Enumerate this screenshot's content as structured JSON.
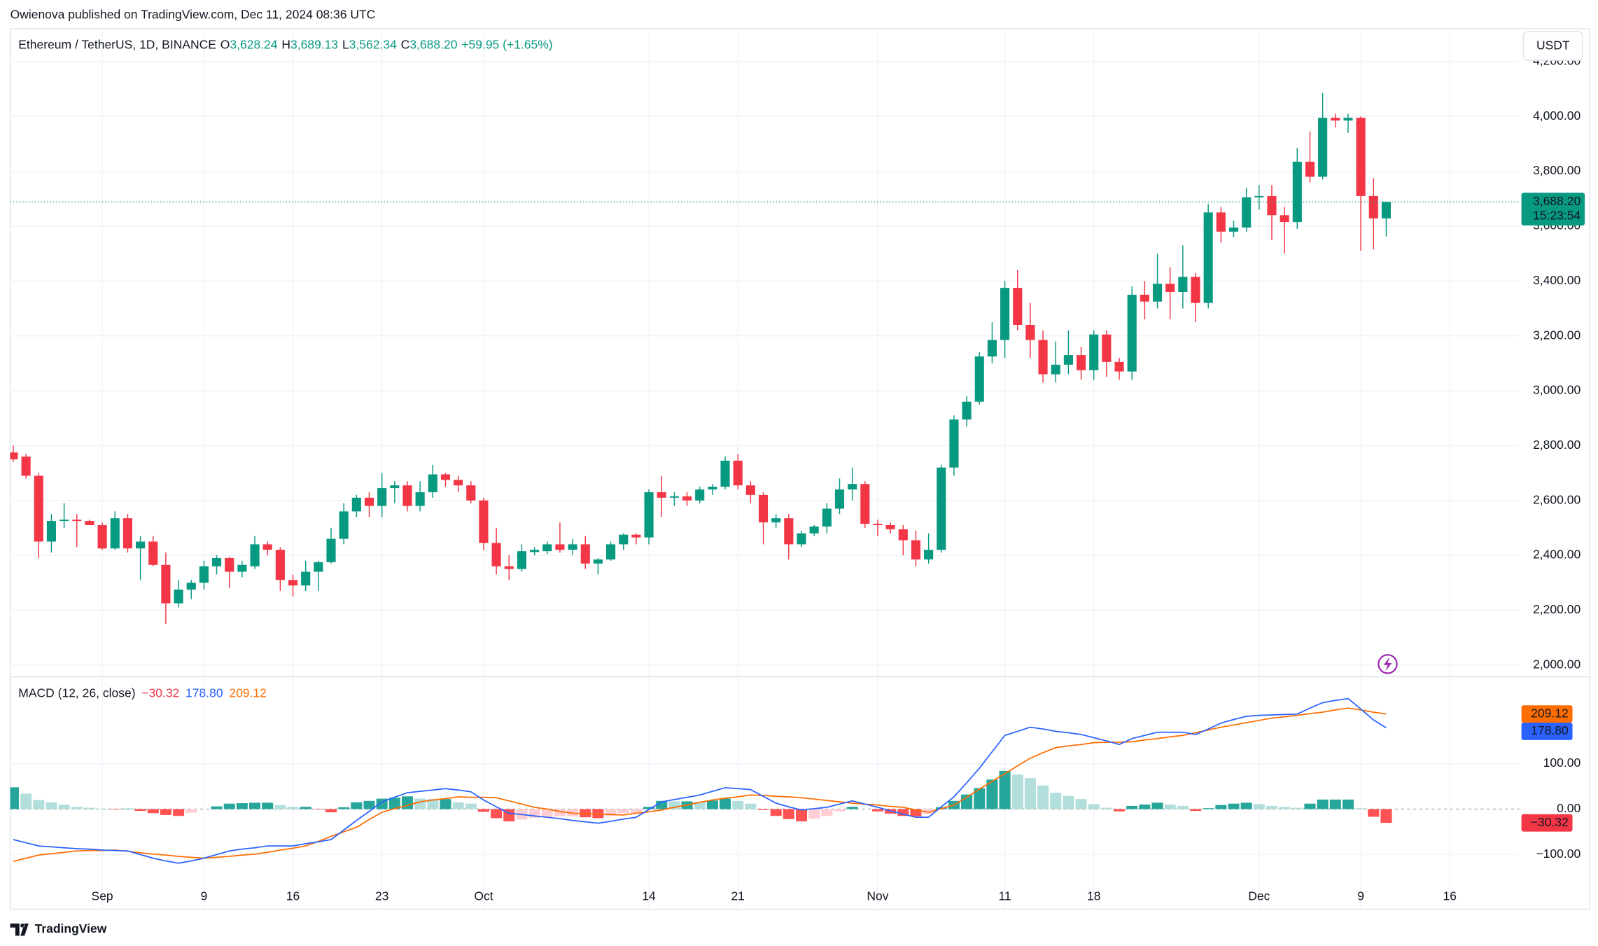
{
  "publisher": "Owienova published on TradingView.com, Dec 11, 2024 08:36 UTC",
  "brand": "TradingView",
  "chart_data": {
    "type": "candlestick",
    "header": {
      "symbol": "Ethereum / TetherUS, 1D, BINANCE",
      "fields": [
        {
          "key": "O",
          "value": "3,628.24"
        },
        {
          "key": "H",
          "value": "3,689.13"
        },
        {
          "key": "L",
          "value": "3,562.34"
        },
        {
          "key": "C",
          "value": "3,688.20"
        }
      ],
      "change": "+59.95 (+1.65%)"
    },
    "currency": "USDT",
    "countdown": "15:23:54",
    "up_color": "#089981",
    "down_color": "#f23645",
    "grid": true,
    "categories": [
      null,
      null,
      null,
      null,
      null,
      null,
      null,
      "Sep",
      null,
      null,
      null,
      null,
      null,
      null,
      null,
      "9",
      null,
      null,
      null,
      null,
      null,
      null,
      "16",
      null,
      null,
      null,
      null,
      null,
      null,
      "23",
      null,
      null,
      null,
      null,
      null,
      null,
      null,
      "Oct",
      null,
      null,
      null,
      null,
      null,
      null,
      null,
      null,
      null,
      null,
      null,
      null,
      "14",
      null,
      null,
      null,
      null,
      null,
      null,
      "21",
      null,
      null,
      null,
      null,
      null,
      null,
      null,
      null,
      null,
      null,
      "Nov",
      null,
      null,
      null,
      null,
      null,
      null,
      null,
      null,
      null,
      "11",
      null,
      null,
      null,
      null,
      null,
      null,
      "18",
      null,
      null,
      null,
      null,
      null,
      null,
      null,
      null,
      null,
      null,
      null,
      null,
      "Dec",
      null,
      null,
      null,
      null,
      null,
      null,
      null,
      "9",
      null,
      null,
      null,
      null,
      null,
      null,
      "16",
      null,
      null,
      null,
      null,
      null
    ],
    "open": [
      2775,
      2760,
      2690,
      2450,
      2525,
      2530,
      2525,
      2510,
      2425,
      2535,
      2425,
      2450,
      2365,
      2225,
      2275,
      2300,
      2360,
      2390,
      2340,
      2360,
      2440,
      2420,
      2310,
      2290,
      2340,
      2375,
      2460,
      2560,
      2610,
      2580,
      2645,
      2655,
      2580,
      2630,
      2695,
      2675,
      2655,
      2600,
      2445,
      2360,
      2350,
      2412,
      2415,
      2440,
      2420,
      2440,
      2370,
      2385,
      2440,
      2475,
      2465,
      2630,
      2610,
      2615,
      2600,
      2640,
      2650,
      2745,
      2655,
      2620,
      2520,
      2535,
      2440,
      2480,
      2505,
      2570,
      2640,
      2660,
      2515,
      2510,
      2495,
      2455,
      2385,
      2420,
      2720,
      2895,
      2960,
      3125,
      3185,
      3375,
      3240,
      3185,
      3060,
      3095,
      3130,
      3075,
      3205,
      3105,
      3070,
      3350,
      3325,
      3390,
      3360,
      3415,
      3320,
      3650,
      3580,
      3595,
      3705,
      3710,
      3640,
      3615,
      3835,
      3780,
      3995,
      3985,
      3995,
      3710,
      3628.24,
      null,
      null,
      null,
      null,
      null,
      null,
      null,
      null,
      null,
      null
    ],
    "high": [
      2800,
      2770,
      2700,
      2550,
      2590,
      2550,
      2530,
      2520,
      2560,
      2550,
      2470,
      2470,
      2410,
      2310,
      2310,
      2380,
      2400,
      2395,
      2380,
      2470,
      2450,
      2430,
      2330,
      2380,
      2380,
      2500,
      2590,
      2620,
      2630,
      2700,
      2670,
      2670,
      2670,
      2730,
      2700,
      2690,
      2670,
      2610,
      2500,
      2400,
      2440,
      2430,
      2450,
      2520,
      2460,
      2470,
      2390,
      2450,
      2480,
      2480,
      2640,
      2690,
      2630,
      2630,
      2650,
      2660,
      2760,
      2770,
      2670,
      2630,
      2550,
      2550,
      2490,
      2510,
      2590,
      2680,
      2720,
      2670,
      2530,
      2520,
      2510,
      2490,
      2480,
      2730,
      2910,
      2980,
      3140,
      3250,
      3400,
      3440,
      3320,
      3220,
      3180,
      3220,
      3160,
      3220,
      3220,
      3120,
      3380,
      3400,
      3500,
      3450,
      3530,
      3430,
      3680,
      3670,
      3620,
      3740,
      3750,
      3750,
      3670,
      3885,
      3945,
      4085,
      4010,
      4010,
      4000,
      3775,
      3689.13,
      null,
      null,
      null,
      null,
      null,
      null,
      null,
      null,
      null,
      null
    ],
    "low": [
      2740,
      2680,
      2390,
      2410,
      2500,
      2430,
      2510,
      2420,
      2420,
      2410,
      2310,
      2360,
      2150,
      2210,
      2240,
      2275,
      2330,
      2280,
      2320,
      2350,
      2400,
      2270,
      2250,
      2270,
      2270,
      2370,
      2440,
      2540,
      2540,
      2540,
      2590,
      2560,
      2560,
      2610,
      2650,
      2630,
      2590,
      2420,
      2330,
      2310,
      2340,
      2400,
      2405,
      2410,
      2400,
      2350,
      2330,
      2380,
      2420,
      2440,
      2440,
      2540,
      2580,
      2580,
      2590,
      2620,
      2640,
      2640,
      2590,
      2440,
      2500,
      2385,
      2430,
      2470,
      2480,
      2550,
      2600,
      2500,
      2470,
      2480,
      2400,
      2360,
      2370,
      2410,
      2690,
      2870,
      2950,
      3100,
      3120,
      3220,
      3120,
      3030,
      3030,
      3060,
      3040,
      3040,
      3050,
      3040,
      3040,
      3260,
      3300,
      3260,
      3300,
      3250,
      3300,
      3540,
      3560,
      3580,
      3660,
      3550,
      3500,
      3590,
      3760,
      3770,
      3960,
      3940,
      3510,
      3515,
      3562.34,
      null,
      null,
      null,
      null,
      null,
      null,
      null,
      null,
      null,
      null
    ],
    "close": [
      2750,
      2690,
      2450,
      2525,
      2530,
      2525,
      2510,
      2425,
      2535,
      2425,
      2450,
      2365,
      2225,
      2275,
      2300,
      2360,
      2390,
      2340,
      2365,
      2440,
      2420,
      2310,
      2290,
      2340,
      2375,
      2460,
      2560,
      2610,
      2580,
      2645,
      2655,
      2580,
      2630,
      2695,
      2675,
      2655,
      2600,
      2445,
      2360,
      2350,
      2415,
      2420,
      2440,
      2420,
      2440,
      2370,
      2385,
      2440,
      2475,
      2465,
      2630,
      2610,
      2615,
      2600,
      2640,
      2650,
      2745,
      2655,
      2620,
      2520,
      2535,
      2440,
      2480,
      2505,
      2570,
      2640,
      2660,
      2515,
      2510,
      2495,
      2455,
      2385,
      2420,
      2720,
      2895,
      2960,
      3125,
      3185,
      3375,
      3240,
      3185,
      3060,
      3095,
      3130,
      3075,
      3205,
      3105,
      3070,
      3350,
      3325,
      3390,
      3360,
      3415,
      3320,
      3650,
      3580,
      3595,
      3705,
      3710,
      3640,
      3615,
      3835,
      3780,
      3995,
      3985,
      3995,
      3710,
      3628.24,
      3688.2,
      null,
      null,
      null,
      null,
      null,
      null,
      null,
      null,
      null,
      null
    ],
    "ylim": [
      1959,
      4320
    ],
    "yticks": [
      {
        "value": 2000,
        "label": "2,000.00"
      },
      {
        "value": 2200,
        "label": "2,200.00"
      },
      {
        "value": 2400,
        "label": "2,400.00"
      },
      {
        "value": 2600,
        "label": "2,600.00"
      },
      {
        "value": 2800,
        "label": "2,800.00"
      },
      {
        "value": 3000,
        "label": "3,000.00"
      },
      {
        "value": 3200,
        "label": "3,200.00"
      },
      {
        "value": 3400,
        "label": "3,400.00"
      },
      {
        "value": 3600,
        "label": "3,600.00"
      },
      {
        "value": 3800,
        "label": "3,800.00"
      },
      {
        "value": 4000,
        "label": "4,000.00"
      },
      {
        "value": 4200,
        "label": "4,200.00"
      }
    ],
    "macd": {
      "title": "MACD (12, 26, close)",
      "ylim": [
        -220,
        292
      ],
      "yticks": [
        {
          "value": -100,
          "label": "−100.00"
        },
        {
          "value": 0,
          "label": "0.00"
        },
        {
          "value": 100,
          "label": "100.00"
        }
      ],
      "histogram": {
        "colors": [
          "#26a69a",
          "#b2dfdb",
          "#ffcdd2",
          "#ff5252"
        ],
        "last_label": "−30.32",
        "label_color": "#f23645",
        "values": [
          48,
          34,
          20,
          15,
          10,
          5,
          3,
          1,
          -1,
          1,
          -4,
          -9,
          -13,
          -15,
          -8,
          0,
          6,
          12,
          13,
          14,
          14,
          9,
          5,
          5,
          -1,
          -7,
          4,
          15,
          18,
          23,
          25,
          28,
          23,
          22,
          22,
          15,
          12,
          -6,
          -20,
          -27,
          -23,
          -19,
          -18,
          -16,
          -16,
          -18,
          -20,
          -15,
          -9,
          -9,
          5,
          18,
          17,
          17,
          16,
          19,
          23,
          18,
          12,
          -2,
          -15,
          -22,
          -27,
          -21,
          -15,
          -5,
          5,
          0,
          -5,
          -10,
          -15,
          -16,
          -11,
          4,
          18,
          32,
          46,
          65,
          84,
          76,
          68,
          52,
          36,
          29,
          22,
          11,
          3,
          -5,
          7,
          10,
          14,
          10,
          7,
          -4,
          2,
          9,
          12,
          14,
          11,
          7,
          5,
          3,
          12,
          21,
          21,
          21,
          2,
          -17,
          -30.32,
          null,
          null,
          null,
          null,
          null,
          null,
          null,
          null,
          null,
          null
        ]
      },
      "macd": {
        "color": "#2962ff",
        "last_label": "178.80",
        "values": [
          -67,
          -74,
          -81,
          -83,
          -85,
          -87,
          -88,
          -90,
          -91,
          -92,
          -100,
          -108,
          -114,
          -119,
          -114,
          -108,
          -100,
          -92,
          -88,
          -85,
          -81,
          -81,
          -81,
          -76,
          -72,
          -67,
          -46,
          -25,
          -5,
          16,
          26,
          36,
          39,
          42,
          45,
          42,
          38,
          20,
          5,
          -9,
          -12,
          -15,
          -18,
          -21,
          -25,
          -28,
          -31,
          -27,
          -22,
          -18,
          -1,
          16,
          21,
          26,
          31,
          39,
          47,
          45,
          43,
          28,
          13,
          5,
          -2,
          1,
          4,
          11,
          18,
          11,
          4,
          -4,
          -11,
          -18,
          -18,
          5,
          27,
          58,
          90,
          126,
          162,
          171,
          180,
          176,
          171,
          168,
          164,
          157,
          150,
          142,
          155,
          162,
          169,
          169,
          169,
          164,
          176,
          189,
          197,
          204,
          206,
          207,
          208,
          209,
          222,
          234,
          239,
          243,
          220,
          196,
          178.8,
          null,
          null,
          null,
          null,
          null,
          null,
          null,
          null,
          null,
          null
        ]
      },
      "signal": {
        "color": "#ff6d00",
        "last_label": "209.12",
        "values": [
          -115,
          -108,
          -101,
          -98,
          -95,
          -92,
          -91,
          -91,
          -90,
          -93,
          -96,
          -99,
          -101,
          -104,
          -106,
          -108,
          -106,
          -104,
          -101,
          -99,
          -95,
          -90,
          -86,
          -81,
          -71,
          -60,
          -50,
          -40,
          -23,
          -7,
          1,
          8,
          16,
          20,
          23,
          27,
          26,
          26,
          25,
          18,
          11,
          4,
          0,
          -5,
          -9,
          -10,
          -11,
          -12,
          -13,
          -9,
          -6,
          -2,
          4,
          9,
          15,
          20,
          24,
          27,
          31,
          30,
          28,
          27,
          25,
          22,
          19,
          16,
          13,
          11,
          9,
          6,
          4,
          -2,
          -7,
          1,
          9,
          26,
          44,
          61,
          78,
          95,
          112,
          124,
          135,
          139,
          142,
          146,
          147,
          147,
          148,
          152,
          155,
          159,
          162,
          168,
          174,
          180,
          185,
          190,
          195,
          200,
          203,
          206,
          210,
          213,
          218,
          222,
          218,
          213,
          209.12,
          null,
          null,
          null,
          null,
          null,
          null,
          null,
          null,
          null,
          null
        ]
      }
    }
  }
}
